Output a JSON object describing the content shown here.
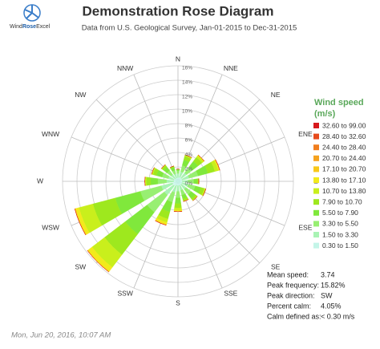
{
  "logo": [
    "Wind",
    "Rose",
    "Excel"
  ],
  "footer": "Mon, Jun 20, 2016, 10:07 AM",
  "chart_data": {
    "type": "rose",
    "title": "Demonstration Rose Diagram",
    "subtitle": "Data from U.S. Geological Survey, Jan-01-2015 to Dec-31-2015",
    "categories": [
      "N",
      "NNE",
      "NE",
      "ENE",
      "E",
      "ESE",
      "SE",
      "SSE",
      "S",
      "SSW",
      "SW",
      "WSW",
      "W",
      "WNW",
      "NW",
      "NNW"
    ],
    "rlim": [
      0,
      16
    ],
    "rticks": [
      {
        "value": 0,
        "label": "0%"
      },
      {
        "value": 2,
        "label": "2%"
      },
      {
        "value": 4,
        "label": "4%"
      },
      {
        "value": 6,
        "label": "6%"
      },
      {
        "value": 8,
        "label": "8%"
      },
      {
        "value": 10,
        "label": "10%"
      },
      {
        "value": 12,
        "label": "12%"
      },
      {
        "value": 14,
        "label": "14%"
      },
      {
        "value": 16,
        "label": "16%"
      }
    ],
    "legend_title": [
      "Wind speed",
      "(m/s)"
    ],
    "series": [
      {
        "name": "0.30 to 1.50",
        "color": "#c4f5e8",
        "values": [
          0.5,
          0.6,
          0.6,
          0.6,
          0.6,
          0.6,
          0.6,
          0.6,
          0.6,
          0.6,
          0.8,
          0.8,
          0.6,
          0.6,
          0.5,
          0.5
        ]
      },
      {
        "name": "1.50 to 3.30",
        "color": "#a9f3b4",
        "values": [
          0.6,
          0.8,
          0.9,
          1.0,
          0.8,
          0.9,
          0.8,
          0.7,
          0.8,
          1.0,
          1.6,
          1.6,
          1.0,
          0.8,
          0.7,
          0.6
        ]
      },
      {
        "name": "3.30 to 5.50",
        "color": "#98ef72",
        "values": [
          0.4,
          0.9,
          1.0,
          1.3,
          0.8,
          1.0,
          0.9,
          0.7,
          0.9,
          1.4,
          3.0,
          3.0,
          1.2,
          0.9,
          0.7,
          0.5
        ]
      },
      {
        "name": "5.50 to 7.90",
        "color": "#80e83c",
        "values": [
          0.2,
          0.8,
          1.0,
          1.4,
          0.5,
          0.8,
          0.7,
          0.5,
          0.8,
          1.4,
          3.8,
          3.6,
          1.0,
          0.8,
          0.6,
          0.4
        ]
      },
      {
        "name": "7.90 to 10.70",
        "color": "#9ee81e",
        "values": [
          0,
          0.5,
          0.7,
          1.0,
          0.2,
          0.5,
          0.3,
          0.3,
          0.6,
          1.0,
          3.6,
          3.2,
          0.6,
          0.5,
          0.3,
          0.2
        ]
      },
      {
        "name": "10.70 to 13.80",
        "color": "#c9ef1c",
        "values": [
          0,
          0.2,
          0.3,
          0.5,
          0,
          0.2,
          0.1,
          0.1,
          0.3,
          0.5,
          2.2,
          2.0,
          0.2,
          0.2,
          0.1,
          0
        ]
      },
      {
        "name": "13.80 to 17.10",
        "color": "#f2ea1c",
        "values": [
          0,
          0,
          0.1,
          0.2,
          0,
          0,
          0,
          0,
          0.2,
          0.3,
          0.7,
          0.5,
          0,
          0,
          0,
          0
        ]
      },
      {
        "name": "17.10 to 20.70",
        "color": "#f8c81a",
        "values": [
          0,
          0,
          0,
          0,
          0,
          0,
          0,
          0,
          0,
          0.1,
          0.1,
          0.1,
          0,
          0,
          0,
          0
        ]
      },
      {
        "name": "20.70 to 24.40",
        "color": "#f5a21e",
        "values": [
          0,
          0,
          0,
          0,
          0,
          0,
          0,
          0,
          0,
          0,
          0,
          0,
          0,
          0,
          0,
          0
        ]
      },
      {
        "name": "24.40 to 28.40",
        "color": "#f07d1e",
        "values": [
          0,
          0,
          0,
          0,
          0,
          0,
          0,
          0,
          0,
          0,
          0,
          0,
          0,
          0,
          0,
          0
        ]
      },
      {
        "name": "28.40 to 32.60",
        "color": "#e64a1c",
        "values": [
          0,
          0,
          0,
          0,
          0,
          0,
          0,
          0,
          0,
          0,
          0,
          0,
          0,
          0,
          0,
          0
        ]
      },
      {
        "name": "32.60 to 99.00",
        "color": "#d7191c",
        "values": [
          0,
          0,
          0,
          0,
          0,
          0,
          0,
          0,
          0,
          0,
          0,
          0,
          0,
          0,
          0,
          0
        ]
      }
    ],
    "summary": [
      {
        "label": "Mean speed:",
        "value": "3.74"
      },
      {
        "label": "Peak frequency:",
        "value": "15.82%"
      },
      {
        "label": "Peak direction:",
        "value": "SW"
      },
      {
        "label": "Percent calm:",
        "value": "4.05%"
      },
      {
        "label": "Calm defined as:",
        "value": "< 0.30 m/s"
      }
    ]
  }
}
